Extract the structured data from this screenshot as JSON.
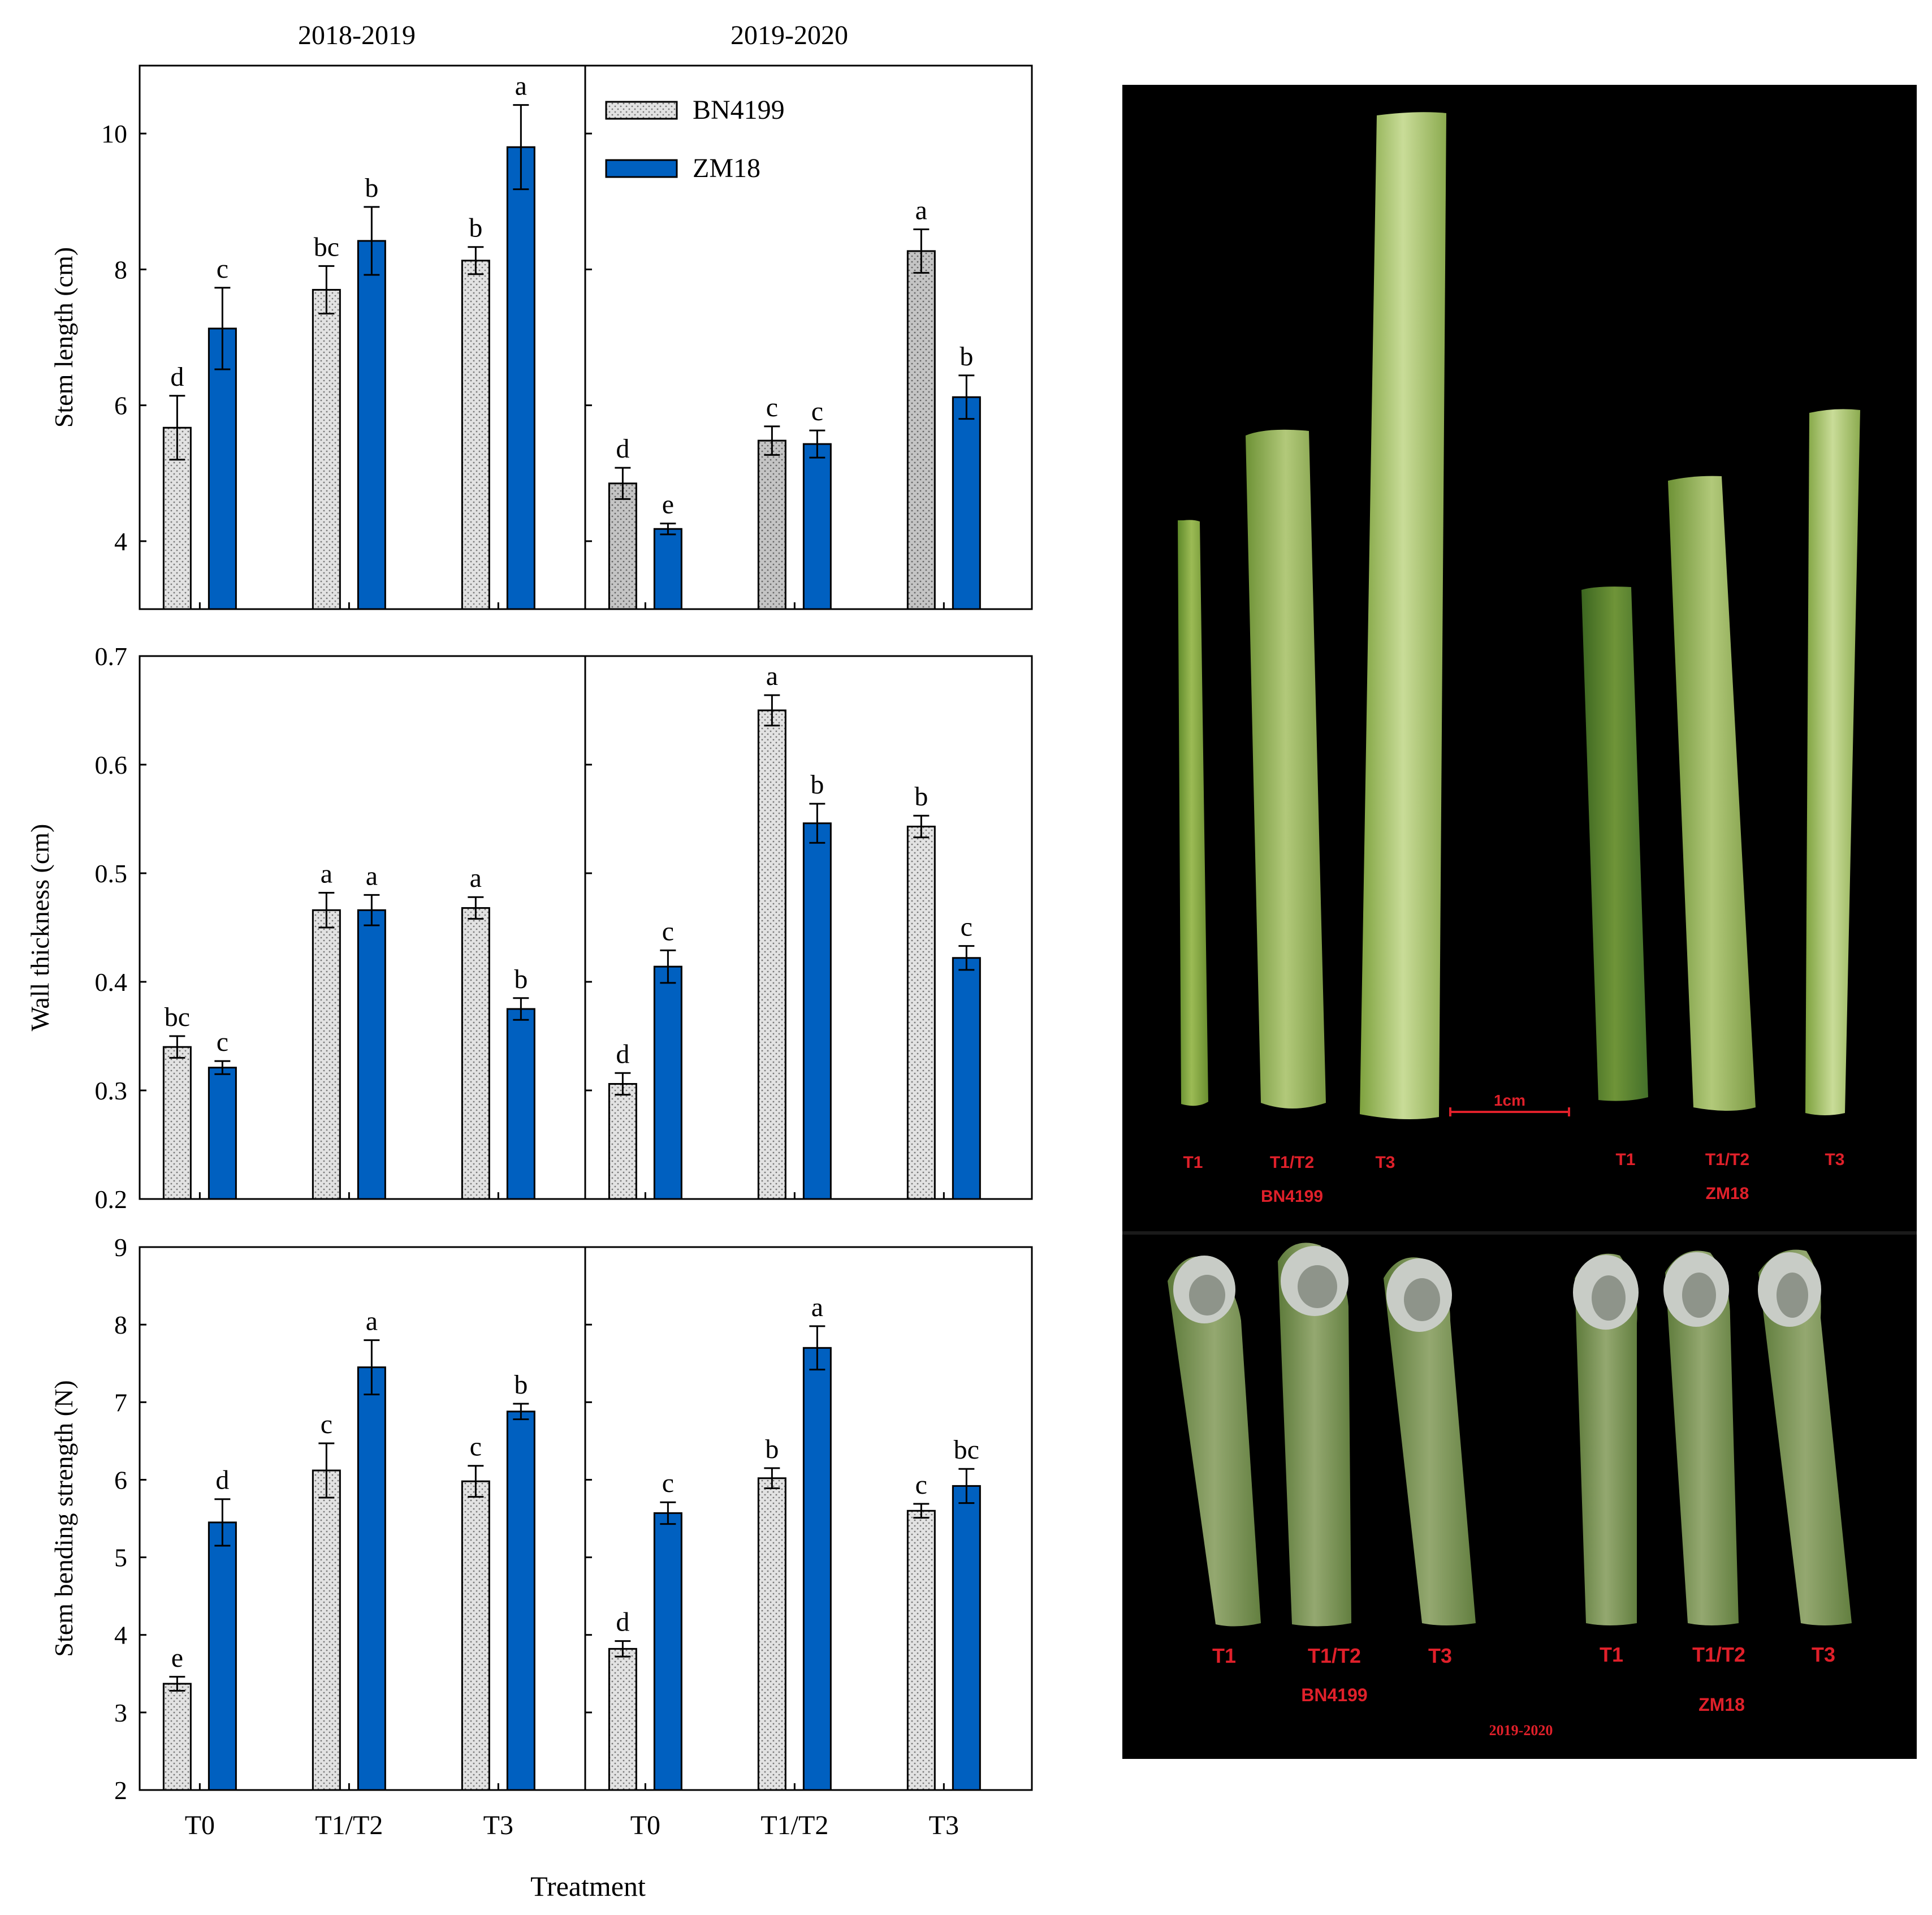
{
  "colors": {
    "bn4199": "#e2e2e2",
    "bn4199_dark": "#c8c8c8",
    "zm18": "#0060c0",
    "photo_bg": "#000000",
    "photo_label": "#e0202a"
  },
  "figure": {
    "season_titles": [
      "2018-2019",
      "2019-2020"
    ],
    "x_axis_title": "Treatment",
    "legend": [
      "BN4199",
      "ZM18"
    ]
  },
  "chart_data": [
    {
      "type": "bar",
      "title": "",
      "ylabel": "Stem length (cm)",
      "ylim": [
        3,
        11
      ],
      "yticks": [
        4,
        6,
        8,
        10
      ],
      "categories": [
        "T0",
        "T1/T2",
        "T3"
      ],
      "panels": [
        {
          "season": "2018-2019",
          "series": [
            {
              "name": "BN4199",
              "values": [
                5.67,
                7.7,
                8.13
              ],
              "errors": [
                0.47,
                0.35,
                0.2
              ],
              "letters": [
                "d",
                "bc",
                "b"
              ]
            },
            {
              "name": "ZM18",
              "values": [
                7.13,
                8.42,
                9.8
              ],
              "errors": [
                0.6,
                0.5,
                0.62
              ],
              "letters": [
                "c",
                "b",
                "a"
              ]
            }
          ]
        },
        {
          "season": "2019-2020",
          "series": [
            {
              "name": "BN4199",
              "values": [
                4.85,
                5.48,
                8.27
              ],
              "errors": [
                0.23,
                0.21,
                0.32
              ],
              "letters": [
                "d",
                "c",
                "a"
              ]
            },
            {
              "name": "ZM18",
              "values": [
                4.18,
                5.43,
                6.12
              ],
              "errors": [
                0.08,
                0.2,
                0.32
              ],
              "letters": [
                "e",
                "c",
                "b"
              ]
            }
          ]
        }
      ]
    },
    {
      "type": "bar",
      "title": "",
      "ylabel": "Wall thickness (cm)",
      "ylim": [
        0.2,
        0.7
      ],
      "yticks": [
        0.2,
        0.3,
        0.4,
        0.5,
        0.6,
        0.7
      ],
      "categories": [
        "T0",
        "T1/T2",
        "T3"
      ],
      "panels": [
        {
          "season": "2018-2019",
          "series": [
            {
              "name": "BN4199",
              "values": [
                0.34,
                0.466,
                0.468
              ],
              "errors": [
                0.01,
                0.016,
                0.01
              ],
              "letters": [
                "bc",
                "a",
                "a"
              ]
            },
            {
              "name": "ZM18",
              "values": [
                0.321,
                0.466,
                0.375
              ],
              "errors": [
                0.006,
                0.014,
                0.01
              ],
              "letters": [
                "c",
                "a",
                "b"
              ]
            }
          ]
        },
        {
          "season": "2019-2020",
          "series": [
            {
              "name": "BN4199",
              "values": [
                0.306,
                0.65,
                0.543
              ],
              "errors": [
                0.01,
                0.014,
                0.01
              ],
              "letters": [
                "d",
                "a",
                "b"
              ]
            },
            {
              "name": "ZM18",
              "values": [
                0.414,
                0.546,
                0.422
              ],
              "errors": [
                0.015,
                0.018,
                0.011
              ],
              "letters": [
                "c",
                "b",
                "c"
              ]
            }
          ]
        }
      ]
    },
    {
      "type": "bar",
      "title": "",
      "ylabel": "Stem bending strength (N)",
      "xlabel": "Treatment",
      "ylim": [
        2,
        9
      ],
      "yticks": [
        2,
        3,
        4,
        5,
        6,
        7,
        8,
        9
      ],
      "categories": [
        "T0",
        "T1/T2",
        "T3"
      ],
      "panels": [
        {
          "season": "2018-2019",
          "series": [
            {
              "name": "BN4199",
              "values": [
                3.37,
                6.12,
                5.98
              ],
              "errors": [
                0.09,
                0.35,
                0.2
              ],
              "letters": [
                "e",
                "c",
                "c"
              ]
            },
            {
              "name": "ZM18",
              "values": [
                5.45,
                7.45,
                6.88
              ],
              "errors": [
                0.3,
                0.35,
                0.1
              ],
              "letters": [
                "d",
                "a",
                "b"
              ]
            }
          ]
        },
        {
          "season": "2019-2020",
          "series": [
            {
              "name": "BN4199",
              "values": [
                3.82,
                6.02,
                5.6
              ],
              "errors": [
                0.1,
                0.13,
                0.09
              ],
              "letters": [
                "d",
                "b",
                "c"
              ]
            },
            {
              "name": "ZM18",
              "values": [
                5.57,
                7.7,
                5.92
              ],
              "errors": [
                0.14,
                0.28,
                0.22
              ],
              "letters": [
                "c",
                "a",
                "bc"
              ]
            }
          ]
        }
      ]
    }
  ],
  "photos": {
    "top": {
      "scale_bar": "1cm",
      "labels_left": [
        "T1",
        "T1/T2",
        "T3"
      ],
      "labels_right": [
        "T1",
        "T1/T2",
        "T3"
      ],
      "variety_left": "BN4199",
      "variety_right": "ZM18"
    },
    "bottom": {
      "labels_left": [
        "T1",
        "T1/T2",
        "T3"
      ],
      "labels_right": [
        "T1",
        "T1/T2",
        "T3"
      ],
      "variety_left": "BN4199",
      "variety_right": "ZM18",
      "season": "2019-2020"
    }
  }
}
